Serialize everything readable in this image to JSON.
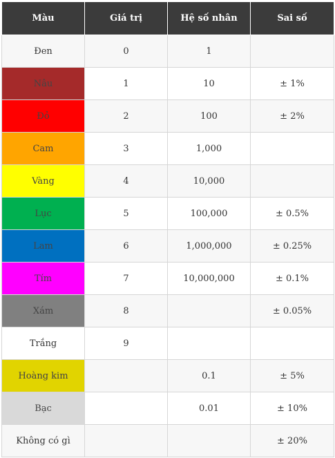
{
  "headers": [
    "Màu",
    "Giá trị",
    "Hệ số nhân",
    "Sai số"
  ],
  "rows": [
    {
      "color": "Đen",
      "value": "0",
      "multiplier": "1",
      "tolerance": "",
      "swatch": ""
    },
    {
      "color": "Nâu",
      "value": "1",
      "multiplier": "10",
      "tolerance": "± 1%",
      "swatch": "#a52a2a"
    },
    {
      "color": "Đỏ",
      "value": "2",
      "multiplier": "100",
      "tolerance": "± 2%",
      "swatch": "#ff0000"
    },
    {
      "color": "Cam",
      "value": "3",
      "multiplier": "1,000",
      "tolerance": "",
      "swatch": "#ffa500"
    },
    {
      "color": "Vàng",
      "value": "4",
      "multiplier": "10,000",
      "tolerance": "",
      "swatch": "#ffff00"
    },
    {
      "color": "Lục",
      "value": "5",
      "multiplier": "100,000",
      "tolerance": "± 0.5%",
      "swatch": "#00b050"
    },
    {
      "color": "Lam",
      "value": "6",
      "multiplier": "1,000,000",
      "tolerance": "± 0.25%",
      "swatch": "#0070c0"
    },
    {
      "color": "Tím",
      "value": "7",
      "multiplier": "10,000,000",
      "tolerance": "± 0.1%",
      "swatch": "#ff00ff"
    },
    {
      "color": "Xám",
      "value": "8",
      "multiplier": "",
      "tolerance": "± 0.05%",
      "swatch": "#808080"
    },
    {
      "color": "Trắng",
      "value": "9",
      "multiplier": "",
      "tolerance": "",
      "swatch": ""
    },
    {
      "color": "Hoàng kim",
      "value": "",
      "multiplier": "0.1",
      "tolerance": "± 5%",
      "swatch": "#e1d400"
    },
    {
      "color": "Bạc",
      "value": "",
      "multiplier": "0.01",
      "tolerance": "± 10%",
      "swatch": "#d9d9d9"
    },
    {
      "color": "Không có gì",
      "value": "",
      "multiplier": "",
      "tolerance": "± 20%",
      "swatch": ""
    }
  ]
}
